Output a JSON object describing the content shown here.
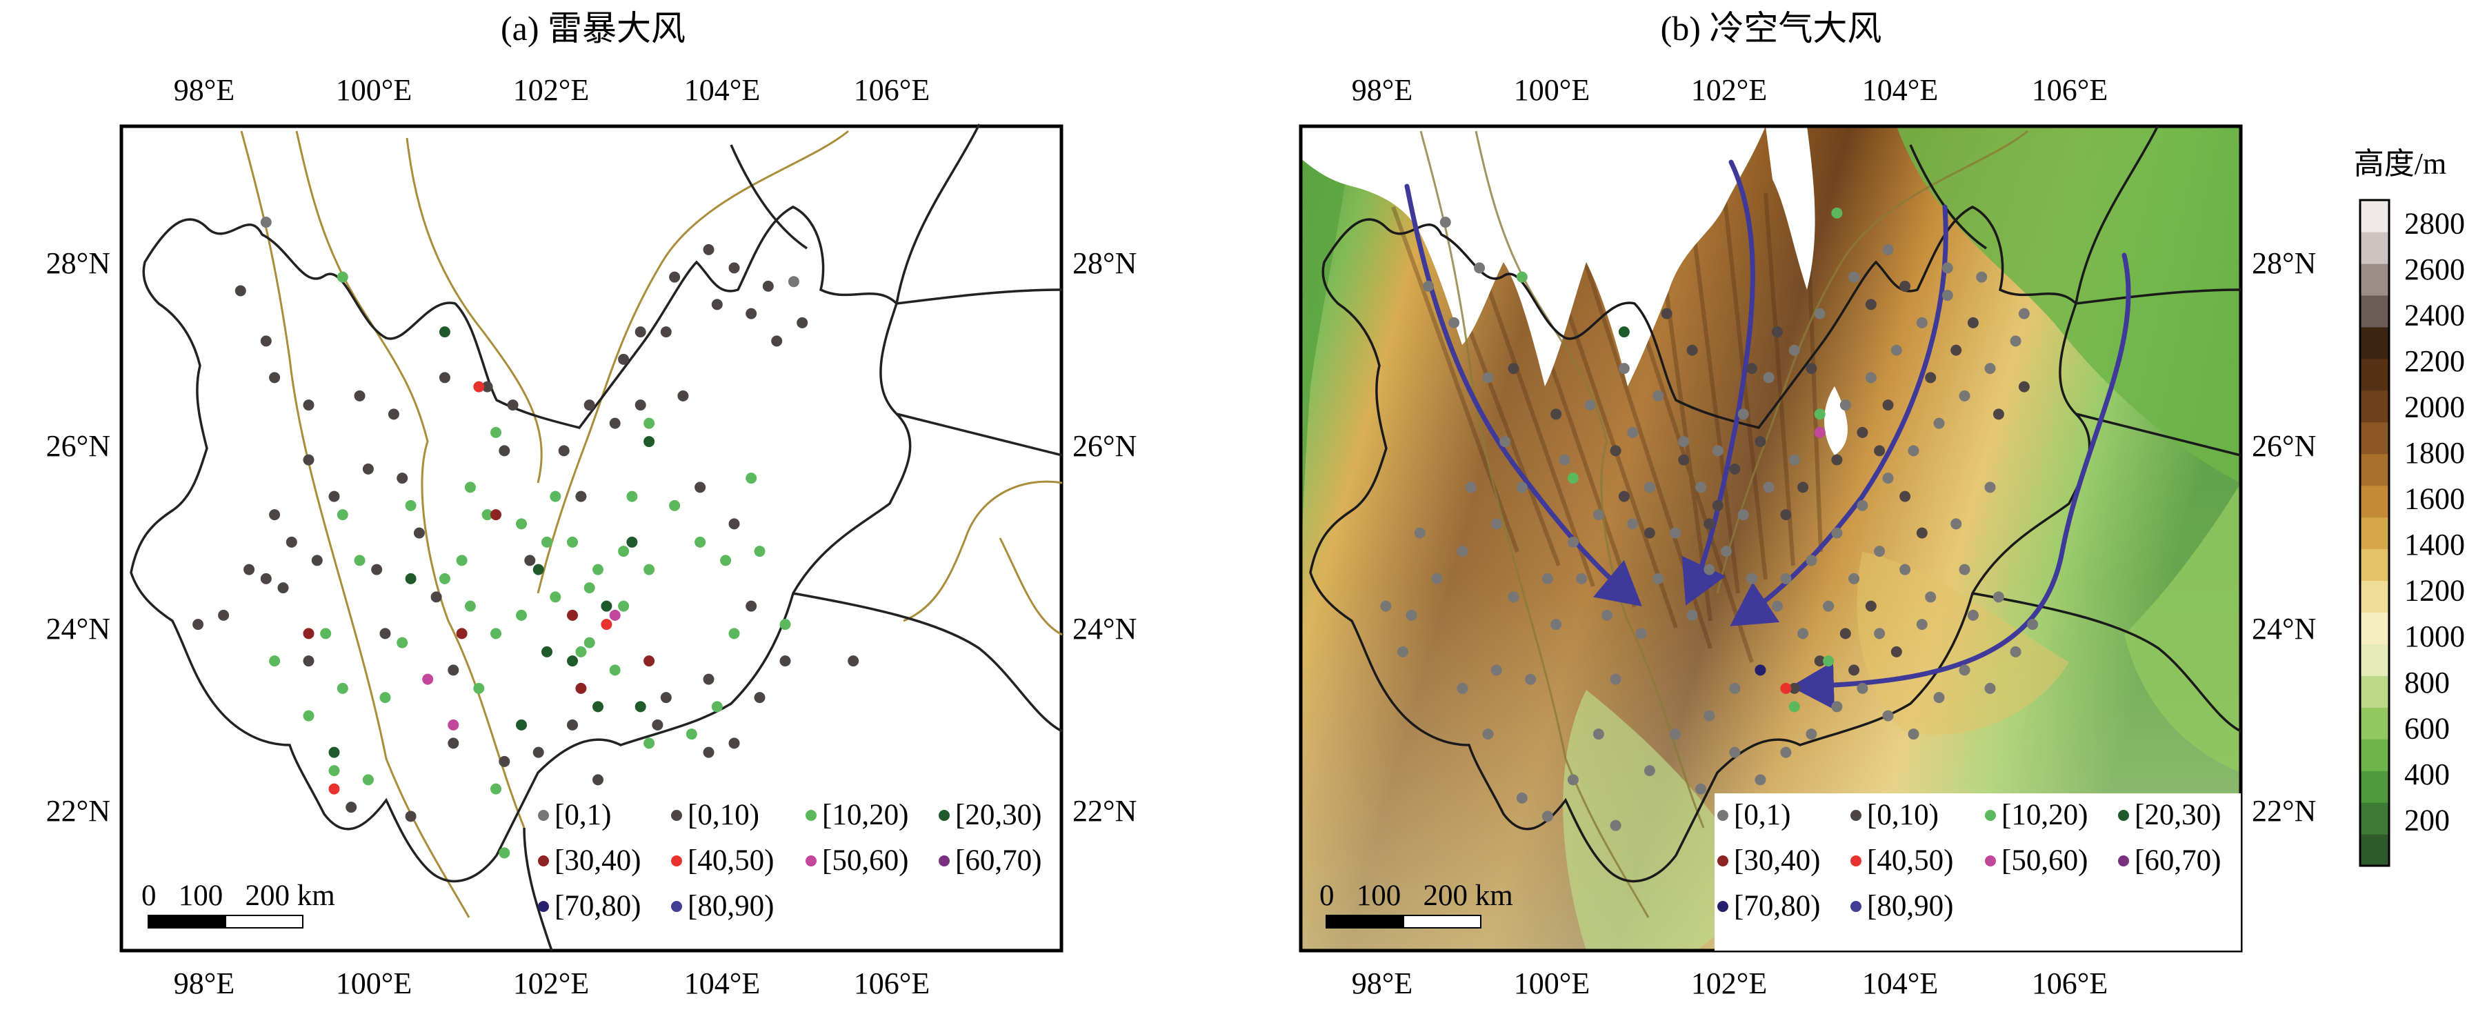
{
  "panels": [
    {
      "title": "(a) 雷暴大风",
      "x_ticks": [
        "98°E",
        "100°E",
        "102°E",
        "104°E",
        "106°E"
      ],
      "y_ticks": [
        "22°N",
        "24°N",
        "26°N",
        "28°N"
      ],
      "legend": [
        "[0,1)",
        "[0,10)",
        "[10,20)",
        "[20,30)",
        "[30,40)",
        "[40,50)",
        "[50,60)",
        "[60,70)",
        "[70,80)",
        "[80,90)"
      ],
      "scale_bar": "0   100   200 km"
    },
    {
      "title": "(b) 冷空气大风",
      "x_ticks": [
        "98°E",
        "100°E",
        "102°E",
        "104°E",
        "106°E"
      ],
      "y_ticks": [
        "22°N",
        "24°N",
        "26°N",
        "28°N"
      ],
      "legend": [
        "[0,1)",
        "[0,10)",
        "[10,20)",
        "[20,30)",
        "[30,40)",
        "[40,50)",
        "[50,60)",
        "[60,70)",
        "[70,80)",
        "[80,90)"
      ],
      "scale_bar": "0   100   200 km"
    }
  ],
  "colorbar": {
    "title": "高度/m",
    "ticks": [
      "200",
      "400",
      "600",
      "800",
      "1000",
      "1200",
      "1400",
      "1600",
      "1800",
      "2000",
      "2200",
      "2400",
      "2600",
      "2800"
    ],
    "colors": [
      "#2f5a2c",
      "#3d7a34",
      "#4e9a3c",
      "#6db548",
      "#92c85e",
      "#bcd98a",
      "#e6ecb8",
      "#f6eec0",
      "#efdc98",
      "#e4c26a",
      "#d6a748",
      "#c48b36",
      "#a9702b",
      "#8c5724",
      "#6f411b",
      "#553116",
      "#3d2311",
      "#6b5c58",
      "#9b8d88",
      "#cdc3c0",
      "#efe9e7"
    ]
  },
  "legend_colors": [
    "#777777",
    "#4d4545",
    "#5cb85c",
    "#1f5a2a",
    "#8e2323",
    "#e8322e",
    "#c2479a",
    "#7a2f82",
    "#25206b",
    "#413f93"
  ],
  "map_colors": {
    "boundary": "#222222",
    "river": "#a98d3a",
    "arrow": "#3f3a9a",
    "snow": "#ffffff"
  },
  "stations_a": {
    "c0_lonlat": [
      [
        98.8,
        28.5
      ],
      [
        105.0,
        27.85
      ]
    ],
    "c1_lonlat": [
      [
        98.5,
        27.75
      ],
      [
        98.8,
        27.2
      ],
      [
        98.9,
        26.8
      ],
      [
        99.3,
        26.5
      ],
      [
        99.3,
        25.9
      ],
      [
        99.6,
        25.5
      ],
      [
        99.1,
        25.0
      ],
      [
        99.0,
        24.5
      ],
      [
        98.6,
        24.7
      ],
      [
        98.3,
        24.2
      ],
      [
        98.0,
        24.1
      ],
      [
        98.8,
        24.6
      ],
      [
        99.9,
        26.6
      ],
      [
        100.3,
        26.4
      ],
      [
        100.4,
        25.7
      ],
      [
        100.0,
        25.8
      ],
      [
        100.6,
        25.1
      ],
      [
        100.1,
        24.7
      ],
      [
        100.2,
        24.0
      ],
      [
        99.4,
        24.8
      ],
      [
        100.8,
        24.4
      ],
      [
        101.0,
        22.8
      ],
      [
        101.6,
        22.6
      ],
      [
        101.0,
        23.6
      ],
      [
        100.9,
        26.8
      ],
      [
        101.4,
        26.7
      ],
      [
        101.7,
        26.5
      ],
      [
        101.6,
        26.0
      ],
      [
        102.3,
        26.0
      ],
      [
        102.5,
        25.5
      ],
      [
        102.6,
        26.5
      ],
      [
        102.9,
        26.3
      ],
      [
        103.0,
        27.0
      ],
      [
        103.2,
        27.3
      ],
      [
        103.5,
        27.3
      ],
      [
        103.6,
        27.9
      ],
      [
        104.0,
        28.2
      ],
      [
        104.3,
        28.0
      ],
      [
        104.1,
        27.6
      ],
      [
        104.5,
        27.5
      ],
      [
        104.8,
        27.2
      ],
      [
        104.7,
        27.8
      ],
      [
        105.1,
        27.4
      ],
      [
        103.7,
        26.6
      ],
      [
        103.2,
        26.5
      ],
      [
        103.9,
        25.6
      ],
      [
        104.3,
        25.2
      ],
      [
        104.5,
        24.3
      ],
      [
        104.0,
        23.5
      ],
      [
        104.6,
        23.3
      ],
      [
        104.3,
        22.8
      ],
      [
        104.0,
        22.7
      ],
      [
        103.4,
        23.0
      ],
      [
        103.5,
        23.3
      ],
      [
        102.7,
        22.4
      ],
      [
        102.0,
        22.7
      ],
      [
        102.4,
        23.0
      ],
      [
        101.9,
        24.8
      ],
      [
        100.5,
        22.0
      ],
      [
        99.8,
        22.1
      ],
      [
        105.7,
        23.7
      ],
      [
        104.9,
        23.7
      ],
      [
        99.3,
        23.7
      ],
      [
        98.9,
        25.3
      ]
    ],
    "c2_lonlat": [
      [
        99.7,
        27.9
      ],
      [
        101.5,
        26.2
      ],
      [
        101.2,
        25.6
      ],
      [
        101.4,
        25.3
      ],
      [
        101.8,
        25.2
      ],
      [
        102.1,
        25.0
      ],
      [
        102.4,
        25.0
      ],
      [
        102.7,
        24.7
      ],
      [
        102.2,
        24.4
      ],
      [
        101.8,
        24.2
      ],
      [
        101.2,
        24.3
      ],
      [
        100.9,
        24.6
      ],
      [
        102.6,
        24.5
      ],
      [
        103.0,
        24.9
      ],
      [
        103.3,
        24.7
      ],
      [
        103.1,
        25.5
      ],
      [
        103.6,
        25.4
      ],
      [
        103.9,
        25.0
      ],
      [
        104.2,
        24.8
      ],
      [
        104.6,
        24.9
      ],
      [
        104.3,
        24.0
      ],
      [
        104.1,
        23.2
      ],
      [
        103.8,
        22.9
      ],
      [
        103.3,
        22.8
      ],
      [
        102.9,
        23.6
      ],
      [
        102.5,
        23.8
      ],
      [
        101.5,
        24.0
      ],
      [
        101.3,
        23.4
      ],
      [
        100.4,
        23.9
      ],
      [
        100.2,
        23.3
      ],
      [
        99.7,
        23.4
      ],
      [
        99.3,
        23.1
      ],
      [
        99.6,
        22.5
      ],
      [
        100.0,
        22.4
      ],
      [
        101.5,
        22.3
      ],
      [
        98.9,
        23.7
      ],
      [
        99.5,
        24.0
      ],
      [
        103.3,
        26.3
      ],
      [
        104.5,
        25.7
      ],
      [
        104.9,
        24.1
      ],
      [
        103.0,
        24.3
      ],
      [
        102.6,
        23.9
      ],
      [
        100.5,
        25.4
      ],
      [
        99.7,
        25.3
      ],
      [
        102.2,
        25.5
      ],
      [
        101.6,
        21.6
      ],
      [
        99.9,
        24.8
      ],
      [
        101.1,
        24.8
      ]
    ],
    "c3_lonlat": [
      [
        100.9,
        27.3
      ],
      [
        102.0,
        24.7
      ],
      [
        102.8,
        24.3
      ],
      [
        103.1,
        25.0
      ],
      [
        103.2,
        23.2
      ],
      [
        102.7,
        23.2
      ],
      [
        102.4,
        23.7
      ],
      [
        100.5,
        24.6
      ],
      [
        101.8,
        23.0
      ],
      [
        103.3,
        26.1
      ],
      [
        99.6,
        22.7
      ],
      [
        102.1,
        23.8
      ]
    ],
    "c4_lonlat": [
      [
        99.3,
        24.0
      ],
      [
        101.1,
        24.0
      ],
      [
        101.5,
        25.3
      ],
      [
        102.5,
        23.4
      ],
      [
        103.3,
        23.7
      ],
      [
        102.4,
        24.2
      ]
    ],
    "c5_lonlat": [
      [
        101.3,
        26.7
      ],
      [
        102.8,
        24.1
      ],
      [
        99.6,
        22.3
      ]
    ],
    "c6_lonlat": [
      [
        100.7,
        23.5
      ],
      [
        101.0,
        23.0
      ],
      [
        102.9,
        24.2
      ]
    ],
    "c7_lonlat": [],
    "c8_lonlat": [],
    "c9_lonlat": []
  },
  "stations_b": {
    "c0_lonlat": [
      [
        98.8,
        28.5
      ],
      [
        99.2,
        28.0
      ],
      [
        98.9,
        27.4
      ],
      [
        99.3,
        26.8
      ],
      [
        99.5,
        26.1
      ],
      [
        99.1,
        25.6
      ],
      [
        99.0,
        24.9
      ],
      [
        98.7,
        24.6
      ],
      [
        98.4,
        24.2
      ],
      [
        98.1,
        24.3
      ],
      [
        98.3,
        23.8
      ],
      [
        99.0,
        23.4
      ],
      [
        99.3,
        22.9
      ],
      [
        99.8,
        23.5
      ],
      [
        100.1,
        24.1
      ],
      [
        100.4,
        24.6
      ],
      [
        100.6,
        25.3
      ],
      [
        100.2,
        25.9
      ],
      [
        100.5,
        26.5
      ],
      [
        100.9,
        26.9
      ],
      [
        101.3,
        26.6
      ],
      [
        101.6,
        26.1
      ],
      [
        101.2,
        25.6
      ],
      [
        101.5,
        25.1
      ],
      [
        101.9,
        24.7
      ],
      [
        101.7,
        24.2
      ],
      [
        101.1,
        24.0
      ],
      [
        100.8,
        23.5
      ],
      [
        100.6,
        22.9
      ],
      [
        100.3,
        22.4
      ],
      [
        100.0,
        22.0
      ],
      [
        99.7,
        22.2
      ],
      [
        99.4,
        23.6
      ],
      [
        101.2,
        22.5
      ],
      [
        101.5,
        22.9
      ],
      [
        101.9,
        23.1
      ],
      [
        102.2,
        22.7
      ],
      [
        102.5,
        22.4
      ],
      [
        102.8,
        22.7
      ],
      [
        103.1,
        22.9
      ],
      [
        103.4,
        23.2
      ],
      [
        103.7,
        23.4
      ],
      [
        104.0,
        23.1
      ],
      [
        104.3,
        22.9
      ],
      [
        104.6,
        23.3
      ],
      [
        104.9,
        23.6
      ],
      [
        105.2,
        23.4
      ],
      [
        105.5,
        23.8
      ],
      [
        105.7,
        24.1
      ],
      [
        105.3,
        24.4
      ],
      [
        104.9,
        24.7
      ],
      [
        104.5,
        24.4
      ],
      [
        104.2,
        24.7
      ],
      [
        103.9,
        24.9
      ],
      [
        103.6,
        24.6
      ],
      [
        103.3,
        24.3
      ],
      [
        103.0,
        24.0
      ],
      [
        102.7,
        24.3
      ],
      [
        102.4,
        24.6
      ],
      [
        102.1,
        24.9
      ],
      [
        102.3,
        25.3
      ],
      [
        102.6,
        25.6
      ],
      [
        102.9,
        25.9
      ],
      [
        103.2,
        26.2
      ],
      [
        103.5,
        26.5
      ],
      [
        103.8,
        26.8
      ],
      [
        104.1,
        27.1
      ],
      [
        104.4,
        27.4
      ],
      [
        104.7,
        27.7
      ],
      [
        104.0,
        28.2
      ],
      [
        103.6,
        27.9
      ],
      [
        103.2,
        27.5
      ],
      [
        102.9,
        27.1
      ],
      [
        102.6,
        26.8
      ],
      [
        102.3,
        26.4
      ],
      [
        102.0,
        26.0
      ],
      [
        101.8,
        25.6
      ],
      [
        102.8,
        24.6
      ],
      [
        103.1,
        24.8
      ],
      [
        103.4,
        25.1
      ],
      [
        103.7,
        25.4
      ],
      [
        104.0,
        25.7
      ],
      [
        104.3,
        26.0
      ],
      [
        104.6,
        26.3
      ],
      [
        104.9,
        26.6
      ],
      [
        105.2,
        26.9
      ],
      [
        105.5,
        27.2
      ],
      [
        105.6,
        27.5
      ],
      [
        105.1,
        27.9
      ],
      [
        104.7,
        28.0
      ],
      [
        98.6,
        27.8
      ],
      [
        100.0,
        24.6
      ],
      [
        100.7,
        24.2
      ],
      [
        99.6,
        24.4
      ],
      [
        101.0,
        25.2
      ],
      [
        100.3,
        25.0
      ],
      [
        99.7,
        25.6
      ],
      [
        99.4,
        25.2
      ],
      [
        98.5,
        25.1
      ],
      [
        101.3,
        24.6
      ],
      [
        101.0,
        26.2
      ],
      [
        104.4,
        24.1
      ],
      [
        104.8,
        25.2
      ],
      [
        105.2,
        25.6
      ],
      [
        103.9,
        24.0
      ],
      [
        105.0,
        24.2
      ],
      [
        102.5,
        23.6
      ],
      [
        102.2,
        23.4
      ],
      [
        101.8,
        22.3
      ],
      [
        100.8,
        21.9
      ]
    ],
    "c1_lonlat": [
      [
        99.6,
        26.9
      ],
      [
        100.1,
        26.4
      ],
      [
        100.8,
        26.0
      ],
      [
        101.2,
        25.1
      ],
      [
        101.9,
        25.2
      ],
      [
        102.2,
        25.8
      ],
      [
        102.5,
        26.1
      ],
      [
        102.8,
        25.3
      ],
      [
        103.0,
        25.6
      ],
      [
        103.4,
        25.9
      ],
      [
        103.7,
        26.2
      ],
      [
        103.9,
        26.0
      ],
      [
        104.2,
        25.5
      ],
      [
        104.4,
        25.1
      ],
      [
        103.8,
        24.3
      ],
      [
        103.5,
        24.0
      ],
      [
        103.2,
        23.7
      ],
      [
        102.9,
        23.4
      ],
      [
        103.1,
        26.9
      ],
      [
        102.7,
        27.3
      ],
      [
        102.4,
        26.9
      ],
      [
        101.7,
        27.1
      ],
      [
        101.4,
        27.5
      ],
      [
        104.5,
        26.8
      ],
      [
        104.8,
        27.1
      ],
      [
        105.0,
        27.4
      ],
      [
        105.3,
        26.4
      ],
      [
        105.6,
        26.7
      ],
      [
        104.0,
        26.5
      ],
      [
        104.2,
        27.8
      ],
      [
        103.8,
        27.6
      ],
      [
        103.6,
        23.6
      ],
      [
        104.1,
        23.8
      ],
      [
        102.0,
        25.4
      ],
      [
        101.6,
        25.9
      ],
      [
        100.9,
        25.5
      ]
    ],
    "c2_lonlat": [
      [
        99.7,
        27.9
      ],
      [
        100.3,
        25.7
      ],
      [
        103.2,
        26.4
      ],
      [
        103.3,
        23.7
      ],
      [
        102.9,
        23.2
      ],
      [
        103.4,
        28.6
      ]
    ],
    "c3_lonlat": [
      [
        100.9,
        27.3
      ]
    ],
    "c4_lonlat": [],
    "c5_lonlat": [
      [
        102.8,
        23.4
      ]
    ],
    "c6_lonlat": [
      [
        103.2,
        26.2
      ]
    ],
    "c7_lonlat": [],
    "c8_lonlat": [
      [
        102.5,
        23.6
      ]
    ],
    "c9_lonlat": []
  }
}
